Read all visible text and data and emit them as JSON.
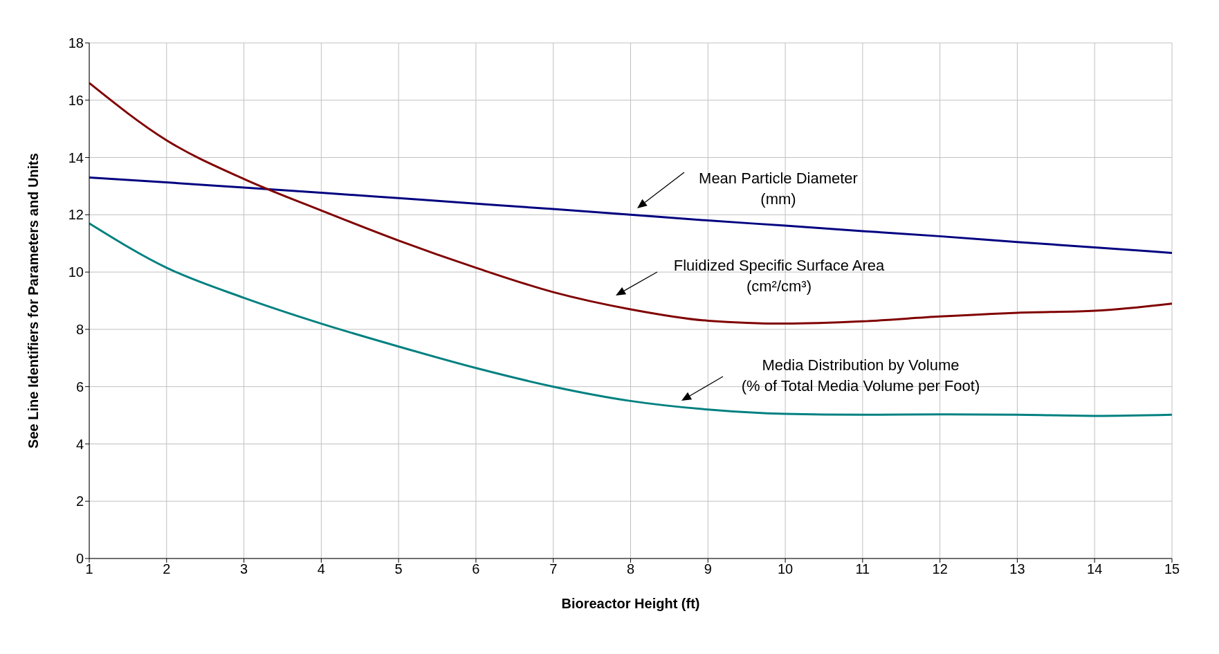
{
  "chart_data": {
    "type": "line",
    "xlabel": "Bioreactor Height (ft)",
    "ylabel": "See Line Identifiers for Parameters and Units",
    "x": [
      1,
      2,
      3,
      4,
      5,
      6,
      7,
      8,
      9,
      10,
      11,
      12,
      13,
      14,
      15
    ],
    "series": [
      {
        "color": "#000080",
        "values": [
          13.3,
          13.13,
          12.95,
          12.77,
          12.58,
          12.39,
          12.2,
          12.0,
          11.8,
          11.62,
          11.43,
          11.25,
          11.05,
          10.86,
          10.67
        ]
      },
      {
        "color": "#800000",
        "values": [
          16.6,
          14.6,
          13.25,
          12.15,
          11.1,
          10.15,
          9.3,
          8.7,
          8.3,
          8.2,
          8.28,
          8.45,
          8.58,
          8.65,
          8.9
        ]
      },
      {
        "color": "#008080",
        "values": [
          11.7,
          10.15,
          9.1,
          8.2,
          7.4,
          6.65,
          6.0,
          5.5,
          5.2,
          5.05,
          5.02,
          5.03,
          5.02,
          4.98,
          5.02
        ]
      }
    ],
    "annotations": [
      "Mean Particle Diameter\n(mm)",
      "Fluidized Specific Surface Area\n(cm²/cm³)",
      "Media Distribution by Volume\n(% of Total Media Volume per Foot)"
    ],
    "xlim": [
      1,
      15
    ],
    "xticks": [
      1,
      2,
      3,
      4,
      5,
      6,
      7,
      8,
      9,
      10,
      11,
      12,
      13,
      14,
      15
    ],
    "ylim": [
      0,
      18
    ],
    "yticks": [
      0,
      2,
      4,
      6,
      8,
      10,
      12,
      14,
      16,
      18
    ],
    "grid": true,
    "legend": false,
    "marker": "none",
    "line_style": "solid"
  }
}
